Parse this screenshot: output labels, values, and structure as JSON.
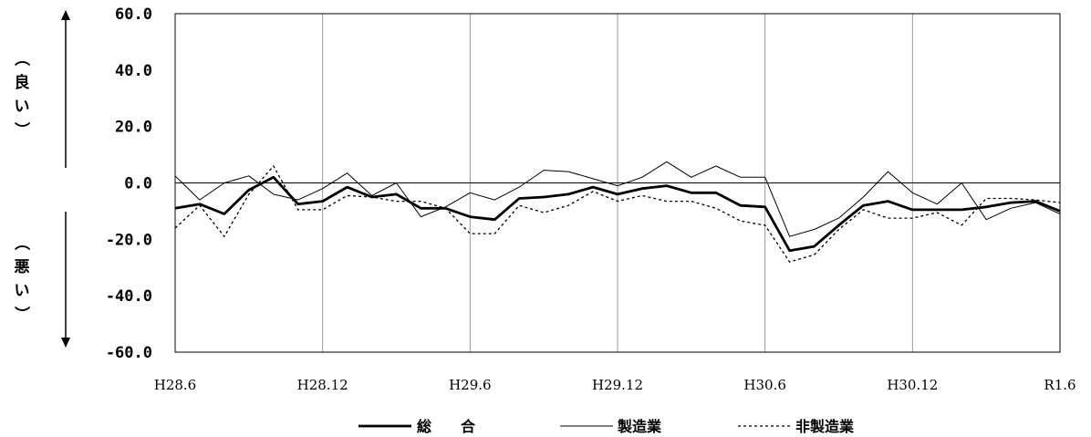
{
  "chart_data": {
    "type": "line",
    "x": [
      "H28.6",
      "H28.7",
      "H28.8",
      "H28.9",
      "H28.10",
      "H28.11",
      "H28.12",
      "H29.1",
      "H29.2",
      "H29.3",
      "H29.4",
      "H29.5",
      "H29.6",
      "H29.7",
      "H29.8",
      "H29.9",
      "H29.10",
      "H29.11",
      "H29.12",
      "H30.1",
      "H30.2",
      "H30.3",
      "H30.4",
      "H30.5",
      "H30.6",
      "H30.7",
      "H30.8",
      "H30.9",
      "H30.10",
      "H30.11",
      "H30.12",
      "H31.1",
      "H31.2",
      "H31.3",
      "H31.4",
      "R1.5",
      "R1.6"
    ],
    "xtick_labels": [
      "H28.6",
      "H28.12",
      "H29.6",
      "H29.12",
      "H30.6",
      "H30.12",
      "R1.6"
    ],
    "ytick_labels": [
      "60.0",
      "40.0",
      "20.0",
      "0.0",
      "-20.0",
      "-40.0",
      "-60.0"
    ],
    "ylim": [
      -60,
      60
    ],
    "vertical_grid": true,
    "zero_line": true,
    "series": [
      {
        "name": "総　合",
        "style": "thick",
        "values": [
          -9,
          -7.5,
          -11,
          -2.5,
          2,
          -7.5,
          -6.5,
          -1.5,
          -5,
          -4,
          -9,
          -9,
          -12,
          -13,
          -5.5,
          -5,
          -4,
          -1.5,
          -4,
          -2,
          -1,
          -3.5,
          -3.5,
          -8,
          -8.5,
          -24,
          -22.5,
          -15,
          -8,
          -6.5,
          -9.5,
          -9.5,
          -9.5,
          -8.5,
          -7,
          -6.5,
          -10
        ]
      },
      {
        "name": "製造業",
        "style": "thin",
        "values": [
          2.5,
          -6,
          0,
          2.5,
          -4,
          -6,
          -2,
          3.5,
          -4.5,
          0,
          -12,
          -8.5,
          -3.5,
          -6,
          -1.5,
          4.5,
          4,
          1.5,
          -1,
          2,
          7.5,
          2,
          6,
          2,
          2,
          -19,
          -16.5,
          -12.5,
          -5,
          4,
          -3.5,
          -7.5,
          0,
          -13,
          -9,
          -7,
          -11
        ]
      },
      {
        "name": "非製造業",
        "style": "dotted",
        "values": [
          -16,
          -8,
          -19,
          -4,
          6,
          -9.5,
          -9.5,
          -4.5,
          -5,
          -6.5,
          -6.5,
          -9,
          -18,
          -18,
          -8,
          -10.5,
          -8,
          -3,
          -6.5,
          -4.5,
          -6.5,
          -6.5,
          -9,
          -13.5,
          -15,
          -28,
          -25.5,
          -16.5,
          -9.5,
          -12.5,
          -12.5,
          -10.5,
          -15,
          -5.5,
          -5.5,
          -6,
          -7
        ]
      }
    ],
    "side_labels": {
      "top": "（良い）",
      "bottom": "（悪い）"
    }
  },
  "legend": [
    {
      "label": "総　　合",
      "style": "thick"
    },
    {
      "label": "製造業",
      "style": "thin"
    },
    {
      "label": "非製造業",
      "style": "dotted"
    }
  ]
}
